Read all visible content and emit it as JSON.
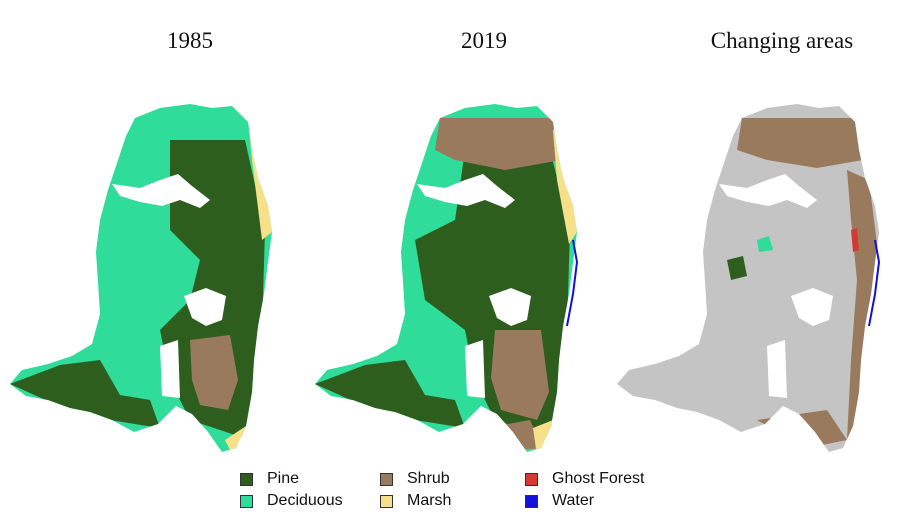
{
  "panels": [
    {
      "title": "1985"
    },
    {
      "title": "2019"
    },
    {
      "title": "Changing areas"
    }
  ],
  "legend": [
    {
      "label": "Pine",
      "color": "#2e5e1e"
    },
    {
      "label": "Deciduous",
      "color": "#2fdc9a"
    },
    {
      "label": "Shrub",
      "color": "#9a7a5c"
    },
    {
      "label": "Marsh",
      "color": "#f6e08a"
    },
    {
      "label": "Ghost Forest",
      "color": "#d23a32"
    },
    {
      "label": "Water",
      "color": "#1010d8"
    }
  ],
  "colors": {
    "pine": "#2e5e1e",
    "deciduous": "#2fdc9a",
    "shrub": "#9a7a5c",
    "marsh": "#f6e08a",
    "ghost_forest": "#d23a32",
    "water": "#1010d8",
    "unchanged": "#c4c4c4"
  }
}
